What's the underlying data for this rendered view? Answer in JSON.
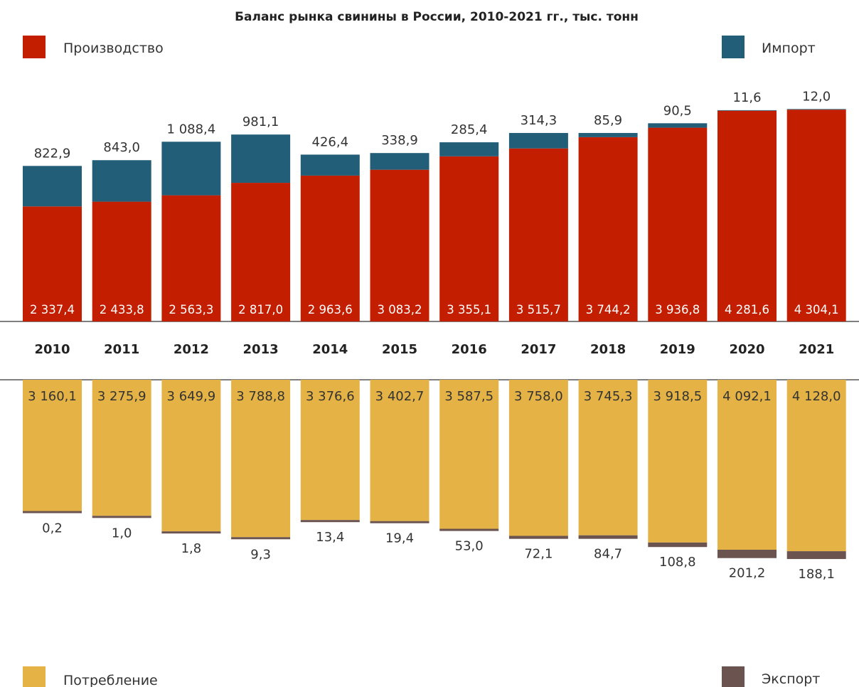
{
  "chart_data": {
    "type": "bar",
    "title": "Баланс рынка свинины в России, 2010-2021 гг., тыс. тонн",
    "categories": [
      "2010",
      "2011",
      "2012",
      "2013",
      "2014",
      "2015",
      "2016",
      "2017",
      "2018",
      "2019",
      "2020",
      "2021"
    ],
    "series": [
      {
        "name": "Производство",
        "color": "#c41e00",
        "values": [
          2337.4,
          2433.8,
          2563.3,
          2817.0,
          2963.6,
          3083.2,
          3355.1,
          3515.7,
          3744.2,
          3936.8,
          4281.6,
          4304.1
        ],
        "labels": [
          "2 337,4",
          "2 433,8",
          "2 563,3",
          "2 817,0",
          "2 963,6",
          "3 083,2",
          "3 355,1",
          "3 515,7",
          "3 744,2",
          "3 936,8",
          "4 281,6",
          "4 304,1"
        ]
      },
      {
        "name": "Импорт",
        "color": "#225e78",
        "values": [
          822.9,
          843.0,
          1088.4,
          981.1,
          426.4,
          338.9,
          285.4,
          314.3,
          85.9,
          90.5,
          11.6,
          12.0
        ],
        "labels": [
          "822,9",
          "843,0",
          "1 088,4",
          "981,1",
          "426,4",
          "338,9",
          "285,4",
          "314,3",
          "85,9",
          "90,5",
          "11,6",
          "12,0"
        ]
      },
      {
        "name": "Потребление",
        "color": "#e5b345",
        "values": [
          3160.1,
          3275.9,
          3649.9,
          3788.8,
          3376.6,
          3402.7,
          3587.5,
          3758.0,
          3745.3,
          3918.5,
          4092.1,
          4128.0
        ],
        "labels": [
          "3 160,1",
          "3 275,9",
          "3 649,9",
          "3 788,8",
          "3 376,6",
          "3 402,7",
          "3 587,5",
          "3 758,0",
          "3 745,3",
          "3 918,5",
          "4 092,1",
          "4 128,0"
        ]
      },
      {
        "name": "Экспорт",
        "color": "#6b5350",
        "values": [
          0.2,
          1.0,
          1.8,
          9.3,
          13.4,
          19.4,
          53.0,
          72.1,
          84.7,
          108.8,
          201.2,
          188.1
        ],
        "labels": [
          "0,2",
          "1,0",
          "1,8",
          "9,3",
          "13,4",
          "19,4",
          "53,0",
          "72,1",
          "84,7",
          "108,8",
          "201,2",
          "188,1"
        ]
      }
    ],
    "legend": [
      "Производство",
      "Импорт",
      "Потребление",
      "Экспорт"
    ]
  }
}
